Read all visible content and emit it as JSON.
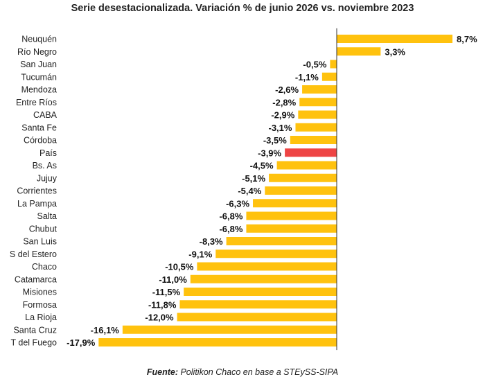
{
  "title": "Serie desestacionalizada. Variación % de junio 2026 vs. noviembre 2023",
  "source": {
    "label": "Fuente:",
    "text": " Politikon Chaco en base a STEySS-SIPA"
  },
  "colors": {
    "bar": "#FFC20E",
    "highlight": "#EE4444",
    "axis": "#333333"
  },
  "chart_data": {
    "type": "bar",
    "orientation": "horizontal",
    "title": "Serie desestacionalizada. Variación % de junio 2026 vs. noviembre 2023",
    "xlabel": "",
    "ylabel": "",
    "unit": "%",
    "grid": false,
    "legend": "none",
    "xlim": [
      -18,
      9
    ],
    "highlight_category": "País",
    "categories": [
      "Neuquén",
      "Río Negro",
      "San Juan",
      "Tucumán",
      "Mendoza",
      "Entre Ríos",
      "CABA",
      "Santa Fe",
      "Córdoba",
      "País",
      "Bs. As",
      "Jujuy",
      "Corrientes",
      "La Pampa",
      "Salta",
      "Chubut",
      "San Luis",
      "S del Estero",
      "Chaco",
      "Catamarca",
      "Misiones",
      "Formosa",
      "La Rioja",
      "Santa Cruz",
      "T del Fuego"
    ],
    "values": [
      8.7,
      3.3,
      -0.5,
      -1.1,
      -2.6,
      -2.8,
      -2.9,
      -3.1,
      -3.5,
      -3.9,
      -4.5,
      -5.1,
      -5.4,
      -6.3,
      -6.8,
      -6.8,
      -8.3,
      -9.1,
      -10.5,
      -11.0,
      -11.5,
      -11.8,
      -12.0,
      -16.1,
      -17.9
    ],
    "value_labels": [
      "8,7%",
      "3,3%",
      "-0,5%",
      "-1,1%",
      "-2,6%",
      "-2,8%",
      "-2,9%",
      "-3,1%",
      "-3,5%",
      "-3,9%",
      "-4,5%",
      "-5,1%",
      "-5,4%",
      "-6,3%",
      "-6,8%",
      "-6,8%",
      "-8,3%",
      "-9,1%",
      "-10,5%",
      "-11,0%",
      "-11,5%",
      "-11,8%",
      "-12,0%",
      "-16,1%",
      "-17,9%"
    ]
  }
}
